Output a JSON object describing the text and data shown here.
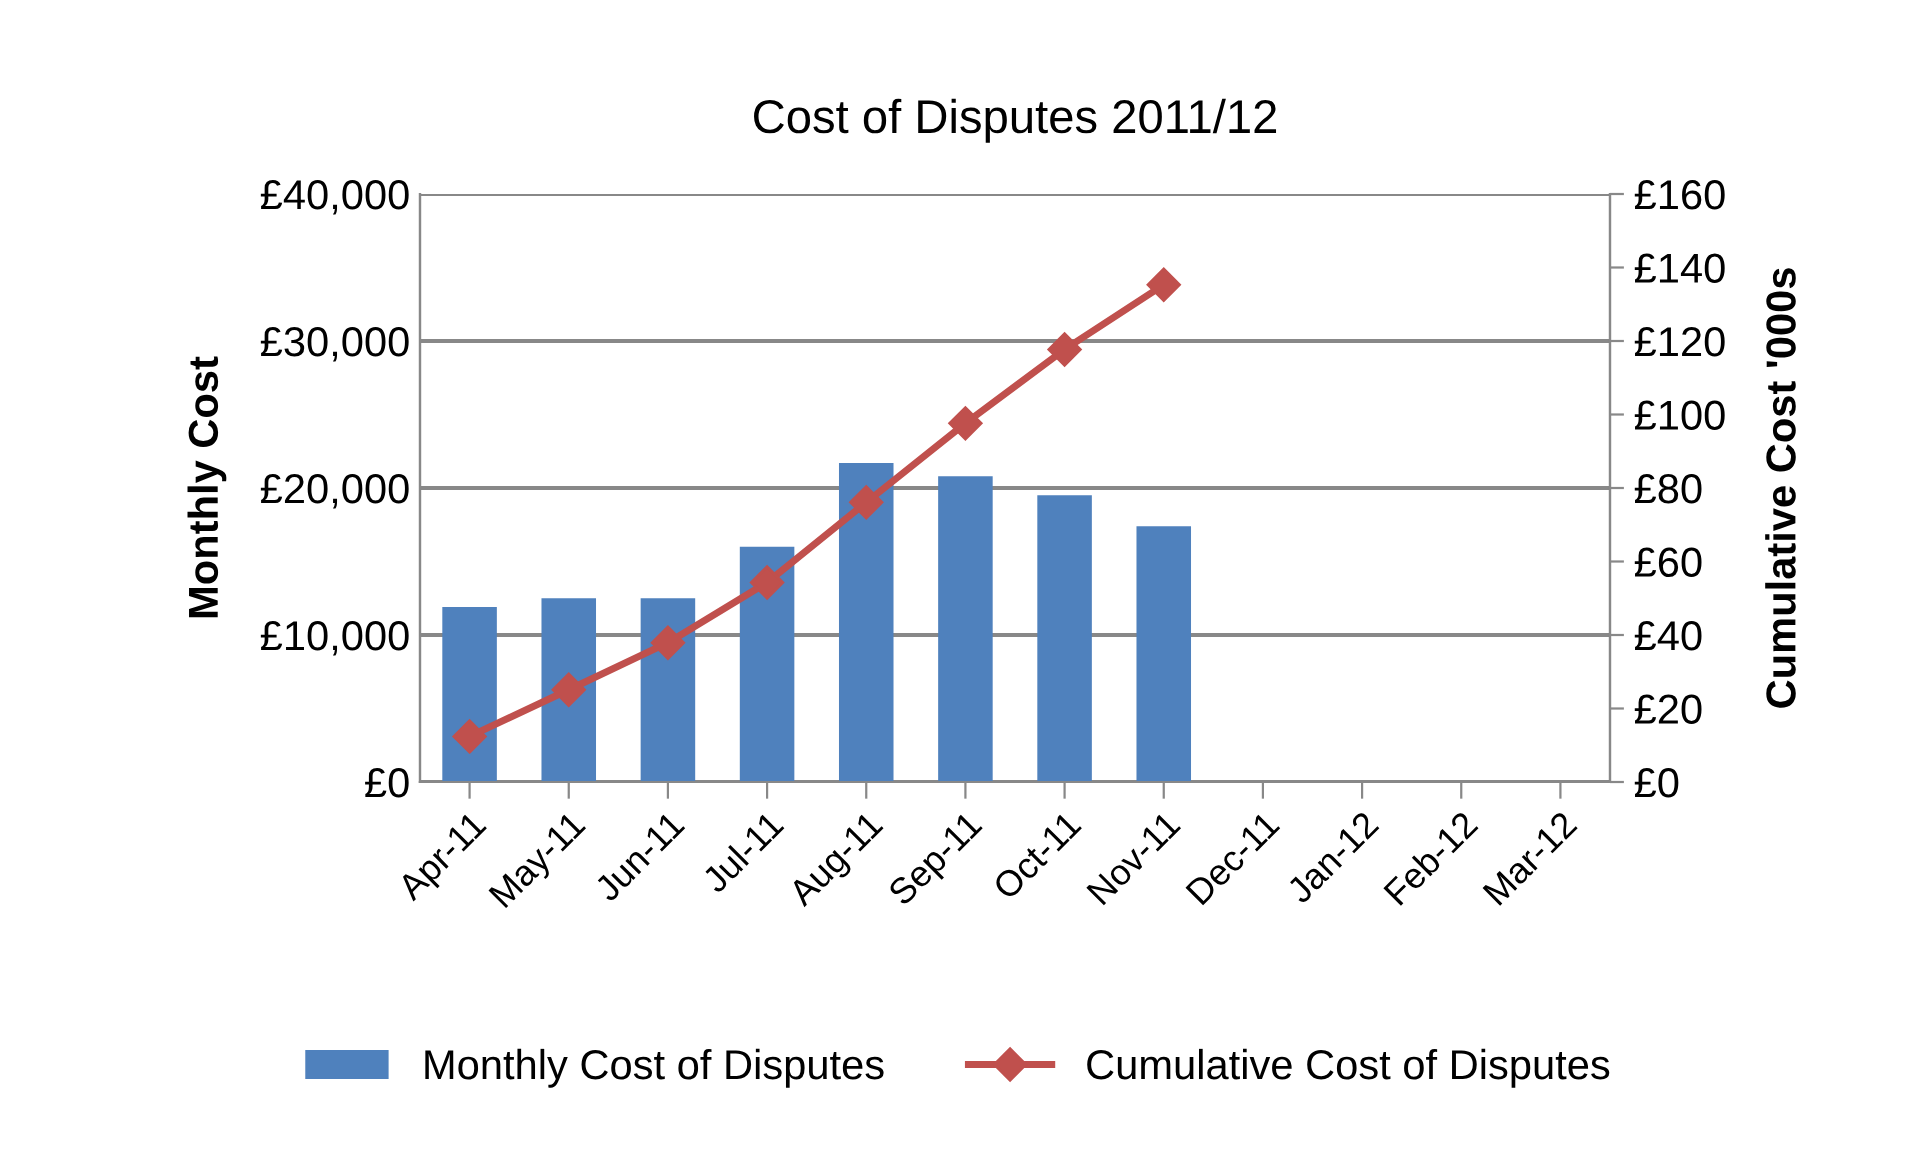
{
  "chart_data": {
    "type": "bar",
    "title": "Cost of Disputes 2011/12",
    "ylabel": "Monthly Cost",
    "y2label": "Cumulative Cost '000s",
    "categories": [
      "Apr-11",
      "May-11",
      "Jun-11",
      "Jul-11",
      "Aug-11",
      "Sep-11",
      "Oct-11",
      "Nov-11",
      "Dec-11",
      "Jan-12",
      "Feb-12",
      "Mar-12"
    ],
    "series": [
      {
        "name": "Monthly Cost of Disputes",
        "color": "#4f81bd",
        "values": [
          11900,
          12500,
          12500,
          16000,
          21700,
          20800,
          19500,
          17400,
          null,
          null,
          null,
          null
        ]
      },
      {
        "name": "Cumulative Cost of Disputes",
        "type": "line",
        "axis": "y2",
        "color": "#c0504d",
        "marker": "diamond",
        "values": [
          12.4,
          25.1,
          37.9,
          54.3,
          76.1,
          97.6,
          117.7,
          135.3,
          null,
          null,
          null,
          null
        ]
      }
    ],
    "ylim": [
      0,
      40000
    ],
    "yticks": [
      {
        "value": 0,
        "label": "£0"
      },
      {
        "value": 10000,
        "label": "£10,000"
      },
      {
        "value": 20000,
        "label": "£20,000"
      },
      {
        "value": 30000,
        "label": "£30,000"
      },
      {
        "value": 40000,
        "label": "£40,000"
      }
    ],
    "y2lim": [
      0,
      160
    ],
    "y2ticks": [
      {
        "value": 0,
        "label": "£0"
      },
      {
        "value": 20,
        "label": "£20"
      },
      {
        "value": 40,
        "label": "£40"
      },
      {
        "value": 60,
        "label": "£60"
      },
      {
        "value": 80,
        "label": "£80"
      },
      {
        "value": 100,
        "label": "£100"
      },
      {
        "value": 120,
        "label": "£120"
      },
      {
        "value": 140,
        "label": "£140"
      },
      {
        "value": 160,
        "label": "£160"
      }
    ],
    "grid": "y",
    "legend": "bottom"
  }
}
